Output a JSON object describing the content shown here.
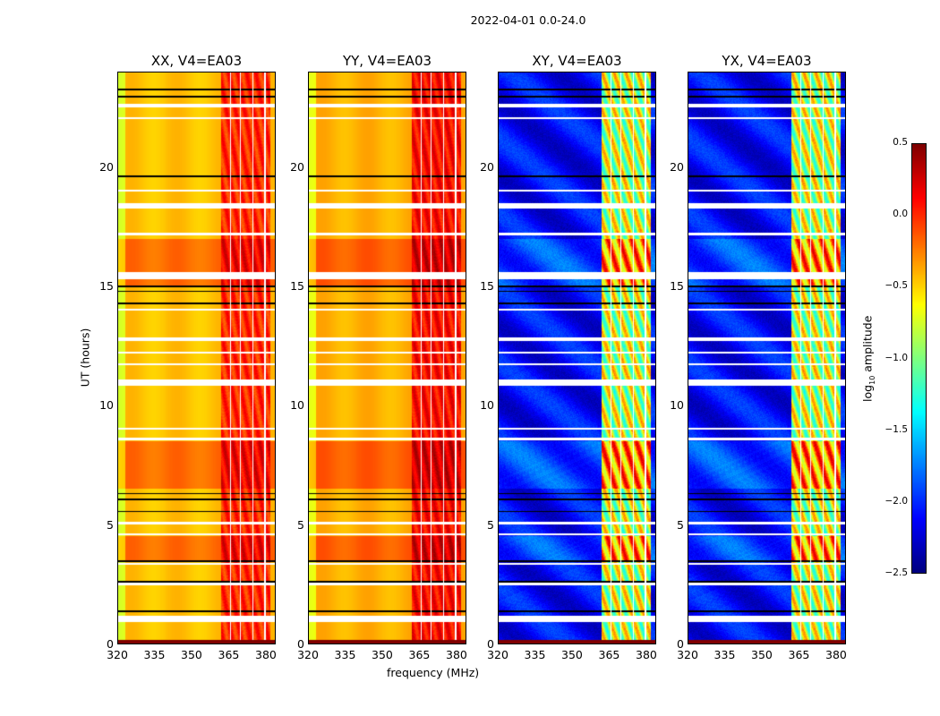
{
  "chart_data": {
    "type": "heatmap",
    "title": "2022-04-01 0.0-24.0",
    "xlabel": "frequency (MHz)",
    "ylabel": "UT (hours)",
    "xlim": [
      320,
      384
    ],
    "ylim": [
      0,
      24
    ],
    "xticks": [
      "320",
      "335",
      "350",
      "365",
      "380"
    ],
    "xtick_values": [
      320,
      335,
      350,
      365,
      380
    ],
    "yticks": [
      "0",
      "5",
      "10",
      "15",
      "20"
    ],
    "ytick_values": [
      0,
      5,
      10,
      15,
      20
    ],
    "colormap": "jet",
    "colorbar": {
      "label_prefix": "log",
      "label_sub": "10",
      "label_suffix": " amplitude",
      "range": [
        -2.5,
        0.5
      ],
      "ticks": [
        "0.5",
        "0.0",
        "−0.5",
        "−1.0",
        "−1.5",
        "−2.0",
        "−2.5"
      ],
      "tick_values": [
        0.5,
        0.0,
        -0.5,
        -1.0,
        -1.5,
        -2.0,
        -2.5
      ]
    },
    "panels": [
      {
        "title": "XX, V4=EA03",
        "kind": "parallel",
        "base": -0.45,
        "band_level": 0.05
      },
      {
        "title": "YY, V4=EA03",
        "kind": "parallel",
        "base": -0.4,
        "band_level": 0.15
      },
      {
        "title": "XY, V4=EA03",
        "kind": "cross",
        "base": -2.2,
        "band_level": -0.9
      },
      {
        "title": "YX, V4=EA03",
        "kind": "cross",
        "base": -2.2,
        "band_level": -0.9
      }
    ],
    "rfi_band_mhz": [
      362,
      382
    ],
    "band_stripe_mhz": [
      366,
      370,
      375,
      380
    ],
    "elevated_ut_hours": [
      [
        15.0,
        17.0
      ],
      [
        3.5,
        4.5
      ],
      [
        6.5,
        8.5
      ]
    ],
    "flagged_ut_hours": [
      [
        0.9,
        1.15
      ],
      [
        2.45,
        2.55
      ],
      [
        3.3,
        3.38
      ],
      [
        4.55,
        4.62
      ],
      [
        5.0,
        5.12
      ],
      [
        8.55,
        8.65
      ],
      [
        9.0,
        9.06
      ],
      [
        10.85,
        11.1
      ],
      [
        11.7,
        11.78
      ],
      [
        12.2,
        12.26
      ],
      [
        12.7,
        12.85
      ],
      [
        14.0,
        14.08
      ],
      [
        15.3,
        15.6
      ],
      [
        17.15,
        17.25
      ],
      [
        18.3,
        18.5
      ],
      [
        19.0,
        19.06
      ],
      [
        22.05,
        22.12
      ],
      [
        22.55,
        22.7
      ]
    ],
    "dropout_ut_hours": [
      1.35,
      2.6,
      3.45,
      5.55,
      6.05,
      6.3,
      14.3,
      14.8,
      15.0,
      19.65,
      23.0,
      23.3
    ],
    "bottom_row_level": 0.5
  }
}
